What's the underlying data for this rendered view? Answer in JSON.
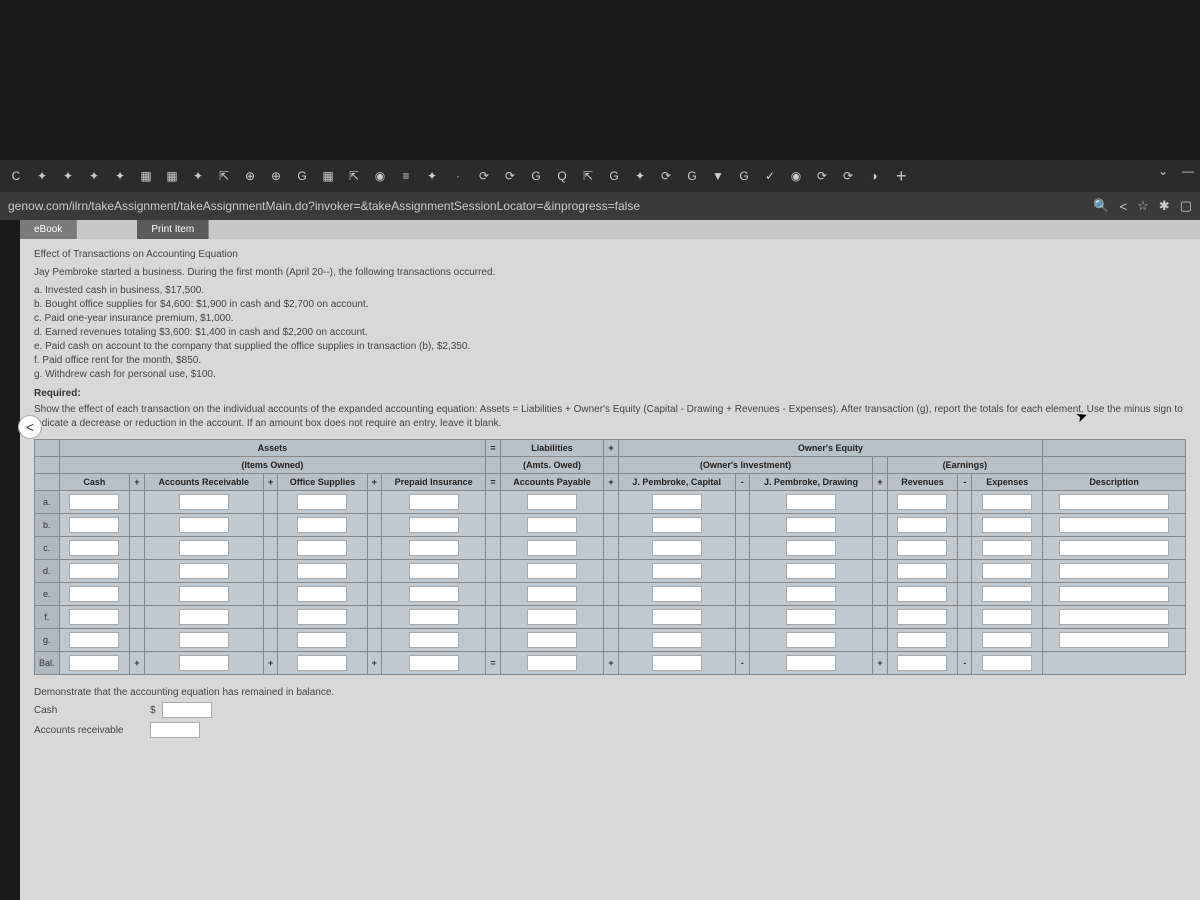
{
  "browser": {
    "url": "genow.com/ilrn/takeAssignment/takeAssignmentMain.do?invoker=&takeAssignmentSessionLocator=&inprogress=false",
    "tab_icons": [
      "C",
      "✦",
      "✦",
      "✦",
      "✦",
      "▦",
      "▦",
      "✦",
      "⇱",
      "⊕",
      "⊕",
      "G",
      "▦",
      "⇱",
      "◉",
      "≡",
      "✦",
      "·",
      "⟳",
      "⟳",
      "G",
      "Q",
      "⇱",
      "G",
      "✦",
      "⟳",
      "G",
      "▼",
      "G",
      "✓",
      "◉",
      "⟳",
      "⟳",
      "◑"
    ],
    "plus": "+"
  },
  "tabs": {
    "ebook": "eBook",
    "print": "Print Item"
  },
  "problem": {
    "title": "Effect of Transactions on Accounting Equation",
    "intro": "Jay Pembroke started a business. During the first month (April 20--), the following transactions occurred.",
    "tx_a": "a. Invested cash in business, $17,500.",
    "tx_b": "b. Bought office supplies for $4,600: $1,900 in cash and $2,700 on account.",
    "tx_c": "c. Paid one-year insurance premium, $1,000.",
    "tx_d": "d. Earned revenues totaling $3,600: $1,400 in cash and $2,200 on account.",
    "tx_e": "e. Paid cash on account to the company that supplied the office supplies in transaction (b), $2,350.",
    "tx_f": "f. Paid office rent for the month, $850.",
    "tx_g": "g. Withdrew cash for personal use, $100.",
    "required": "Required:",
    "instructions": "Show the effect of each transaction on the individual accounts of the expanded accounting equation: Assets = Liabilities + Owner's Equity (Capital - Drawing + Revenues - Expenses). After transaction (g), report the totals for each element. Use the minus sign to indicate a decrease or reduction in the account. If an amount box does not require an entry, leave it blank."
  },
  "table": {
    "h_assets": "Assets",
    "h_eq": "=",
    "h_liab": "Liabilities",
    "h_plus": "+",
    "h_oe": "Owner's Equity",
    "h_items": "(Items Owned)",
    "h_amts": "(Amts. Owed)",
    "h_inv": "(Owner's Investment)",
    "h_earn": "(Earnings)",
    "c_cash": "Cash",
    "c_ar": "Accounts Receivable",
    "c_os": "Office Supplies",
    "c_pi": "Prepaid Insurance",
    "c_ap": "Accounts Payable",
    "c_cap": "J. Pembroke, Capital",
    "c_draw": "J. Pembroke, Drawing",
    "c_rev": "Revenues",
    "c_exp": "Expenses",
    "c_desc": "Description",
    "op_plus": "+",
    "op_eq": "=",
    "op_minus": "-",
    "rows": [
      "a.",
      "b.",
      "c.",
      "d.",
      "e.",
      "f.",
      "g.",
      "Bal."
    ]
  },
  "balance": {
    "prompt": "Demonstrate that the accounting equation has remained in balance.",
    "cash": "Cash",
    "ar": "Accounts receivable",
    "dollar": "$"
  }
}
